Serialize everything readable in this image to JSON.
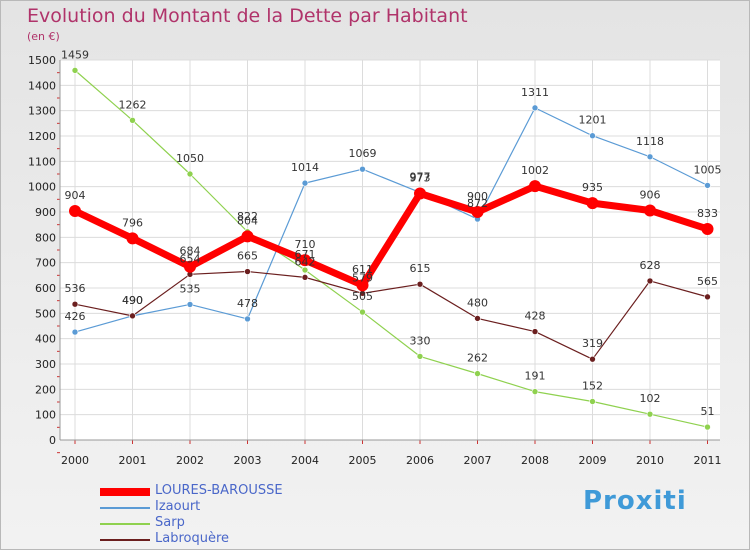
{
  "title": "Evolution du Montant de la Dette par Habitant",
  "subtitle": "(en €)",
  "logo": "Proxiti",
  "chart_data": {
    "type": "line",
    "title": "Evolution du Montant de la Dette par Habitant",
    "ylabel": "(en €)",
    "xlabel": "",
    "ylim": [
      0,
      1500
    ],
    "yticks": [
      0,
      100,
      200,
      300,
      400,
      500,
      600,
      700,
      800,
      900,
      1000,
      1100,
      1200,
      1300,
      1400,
      1500
    ],
    "grid": true,
    "legend_position": "bottom-left",
    "categories": [
      "2000",
      "2001",
      "2002",
      "2003",
      "2004",
      "2005",
      "2006",
      "2007",
      "2008",
      "2009",
      "2010",
      "2011"
    ],
    "series": [
      {
        "name": "LOURES-BAROUSSE",
        "color": "#ff0000",
        "values": [
          904,
          796,
          684,
          804,
          710,
          611,
          973,
          900,
          1002,
          935,
          906,
          833
        ]
      },
      {
        "name": "Izaourt",
        "color": "#5b9bd5",
        "values": [
          426,
          490,
          535,
          478,
          1014,
          1069,
          977,
          872,
          1311,
          1201,
          1118,
          1005
        ]
      },
      {
        "name": "Sarp",
        "color": "#8fd14f",
        "values": [
          1459,
          1262,
          1050,
          822,
          671,
          505,
          330,
          262,
          191,
          152,
          102,
          51
        ]
      },
      {
        "name": "Labroquère",
        "color": "#6b1f1f",
        "values": [
          536,
          490,
          654,
          665,
          642,
          579,
          615,
          480,
          428,
          319,
          628,
          565
        ]
      }
    ]
  }
}
